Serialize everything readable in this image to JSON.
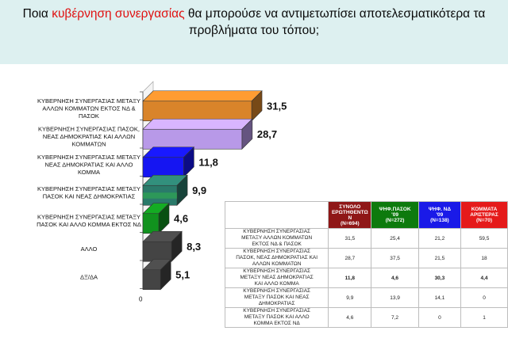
{
  "title": {
    "before": "Ποια ",
    "highlight": "κυβέρνηση συνεργασίας",
    "after": " θα μπορούσε να αντιμετωπίσει αποτελεσματικότερα τα προβλήματα του τόπου;"
  },
  "colors": {
    "banner": "#ddf0f0",
    "highlight": "#e01010",
    "bars": [
      "#d9842a",
      "#b899e8",
      "#1515f2",
      "#2a7a6a",
      "#11921e",
      "#444444",
      "#444444"
    ],
    "header_bg": [
      "#8f1717",
      "#0d7a0d",
      "#1a1ae8",
      "#e51a1a"
    ]
  },
  "chart_data": {
    "type": "bar",
    "orientation": "horizontal",
    "categories": [
      "ΚΥΒΕΡΝΗΣΗ ΣΥΝΕΡΓΑΣΙΑΣ  ΜΕΤΑΞΥ ΑΛΛΩΝ ΚΟΜΜΑΤΩΝ ΕΚΤΟΣ ΝΔ & ΠΑΣΟΚ",
      "ΚΥΒΕΡΝΗΣΗ ΣΥΝΕΡΓΑΣΙΑΣ ΠΑΣΟΚ, ΝΕΑΣ ΔΗΜΟΚΡΑΤΙΑΣ ΚΑΙ ΑΛΛΩΝ ΚΟΜΜΑΤΩΝ",
      "ΚΥΒΕΡΝΗΣΗ ΣΥΝΕΡΓΑΣΙΑΣ ΜΕΤΑΞΥ ΝΕΑΣ ΔΗΜΟΚΡΑΤΙΑΣ ΚΑΙ ΑΛΛΟ ΚΟΜΜΑ",
      "ΚΥΒΕΡΝΗΣΗ ΣΥΝΕΡΓΑΣΙΑΣ ΜΕΤΑΞΥ ΠΑΣΟΚ ΚΑΙ ΝΕΑΣ ΔΗΜΟΚΡΑΤΙΑΣ",
      "ΚΥΒΕΡΝΗΣΗ ΣΥΝΕΡΓΑΣΙΑΣ ΜΕΤΑΞΥ ΠΑΣΟΚ ΚΑΙ ΑΛΛΟ ΚΟΜΜΑ ΕΚΤΟΣ ΝΔ",
      "ΑΛΛΟ",
      "ΔΞ/ΔΑ"
    ],
    "category_lines": [
      [
        "ΚΥΒΕΡΝΗΣΗ ΣΥΝΕΡΓΑΣΙΑΣ  ΜΕΤΑΞΥ",
        "ΑΛΛΩΝ ΚΟΜΜΑΤΩΝ ΕΚΤΟΣ ΝΔ &",
        "ΠΑΣΟΚ"
      ],
      [
        "ΚΥΒΕΡΝΗΣΗ ΣΥΝΕΡΓΑΣΙΑΣ ΠΑΣΟΚ,",
        "ΝΕΑΣ ΔΗΜΟΚΡΑΤΙΑΣ ΚΑΙ ΑΛΛΩΝ",
        "ΚΟΜΜΑΤΩΝ"
      ],
      [
        "ΚΥΒΕΡΝΗΣΗ ΣΥΝΕΡΓΑΣΙΑΣ ΜΕΤΑΞΥ",
        "ΝΕΑΣ ΔΗΜΟΚΡΑΤΙΑΣ ΚΑΙ ΑΛΛΟ",
        "ΚΟΜΜΑ"
      ],
      [
        "ΚΥΒΕΡΝΗΣΗ ΣΥΝΕΡΓΑΣΙΑΣ ΜΕΤΑΞΥ",
        "ΠΑΣΟΚ ΚΑΙ ΝΕΑΣ ΔΗΜΟΚΡΑΤΙΑΣ"
      ],
      [
        "ΚΥΒΕΡΝΗΣΗ ΣΥΝΕΡΓΑΣΙΑΣ ΜΕΤΑΞΥ",
        "ΠΑΣΟΚ ΚΑΙ ΑΛΛΟ ΚΟΜΜΑ ΕΚΤΟΣ ΝΔ"
      ],
      [
        "ΑΛΛΟ"
      ],
      [
        "ΔΞ/ΔΑ"
      ]
    ],
    "values": [
      31.5,
      28.7,
      11.8,
      9.9,
      4.6,
      8.3,
      5.1
    ],
    "value_labels": [
      "31,5",
      "28,7",
      "11,8",
      "9,9",
      "4,6",
      "8,3",
      "5,1"
    ],
    "xlim": [
      0,
      40
    ],
    "x_tick_label": "0",
    "grid": false,
    "style": "3d"
  },
  "table": {
    "headers": [
      [
        "ΣΥΝΟΛΟ",
        "ΕΡΩΤΗΘΕΝΤΩ",
        "Ν",
        "(N=694)"
      ],
      [
        "ΨΗΦ.ΠΑΣΟΚ",
        "'09",
        "(N=272)"
      ],
      [
        "ΨΗΦ. ΝΔ",
        "'09",
        "(N=138)"
      ],
      [
        "ΚΟΜΜΑΤΑ",
        "ΑΡΙΣΤΕΡΑΣ",
        "(N=70)"
      ]
    ],
    "rows": [
      {
        "label": [
          "ΚΥΒΕΡΝΗΣΗ ΣΥΝΕΡΓΑΣΙΑΣ",
          "ΜΕΤΑΞΥ ΑΛΛΩΝ ΚΟΜΜΑΤΩΝ",
          "ΕΚΤΟΣ ΝΔ & ΠΑΣΟΚ"
        ],
        "values": [
          "31,5",
          "25,4",
          "21,2",
          "59,5"
        ],
        "bold": false
      },
      {
        "label": [
          "ΚΥΒΕΡΝΗΣΗ ΣΥΝΕΡΓΑΣΙΑΣ",
          "ΠΑΣΟΚ, ΝΕΑΣ ΔΗΜΟΚΡΑΤΙΑΣ ΚΑΙ",
          "ΑΛΛΩΝ ΚΟΜΜΑΤΩΝ"
        ],
        "values": [
          "28,7",
          "37,5",
          "21,5",
          "18"
        ],
        "bold": false
      },
      {
        "label": [
          "ΚΥΒΕΡΝΗΣΗ ΣΥΝΕΡΓΑΣΙΑΣ",
          "ΜΕΤΑΞΥ ΝΕΑΣ ΔΗΜΟΚΡΑΤΙΑΣ",
          "ΚΑΙ ΑΛΛΟ ΚΟΜΜΑ"
        ],
        "values": [
          "11,8",
          "4,6",
          "30,3",
          "4,4"
        ],
        "bold": true
      },
      {
        "label": [
          "ΚΥΒΕΡΝΗΣΗ ΣΥΝΕΡΓΑΣΙΑΣ",
          "ΜΕΤΑΞΥ ΠΑΣΟΚ ΚΑΙ ΝΕΑΣ",
          "ΔΗΜΟΚΡΑΤΙΑΣ"
        ],
        "values": [
          "9,9",
          "13,9",
          "14,1",
          "0"
        ],
        "bold": false
      },
      {
        "label": [
          "ΚΥΒΕΡΝΗΣΗ ΣΥΝΕΡΓΑΣΙΑΣ",
          "ΜΕΤΑΞΥ ΠΑΣΟΚ ΚΑΙ ΑΛΛΟ",
          "ΚΟΜΜΑ ΕΚΤΟΣ ΝΔ"
        ],
        "values": [
          "4,6",
          "7,2",
          "0",
          "1"
        ],
        "bold": false
      }
    ]
  }
}
